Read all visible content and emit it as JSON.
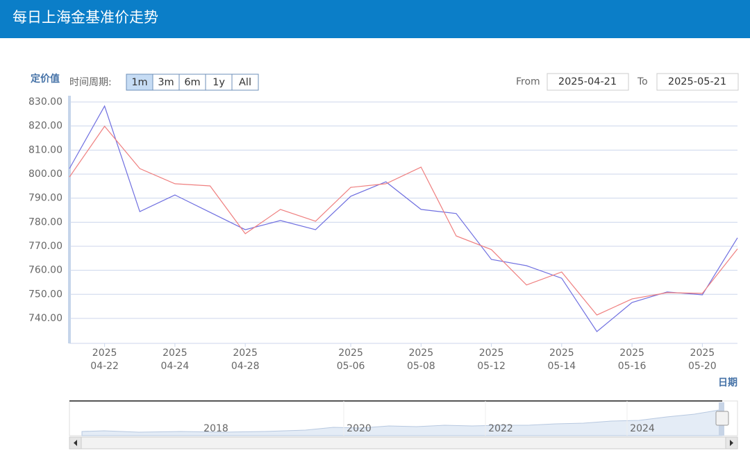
{
  "header": {
    "title": "每日上海金基准价走势"
  },
  "range_selector": {
    "label": "时间周期:",
    "buttons": [
      "1m",
      "3m",
      "6m",
      "1y",
      "All"
    ],
    "selected": 0
  },
  "date_inputs": {
    "from_label": "From",
    "from": "2025-04-21",
    "to_label": "To",
    "to": "2025-05-21"
  },
  "chart_data": {
    "type": "line",
    "y_axis_title": "定价值",
    "x_axis_title": "日期",
    "categories": [
      null,
      [
        "2025",
        "04-22"
      ],
      null,
      [
        "2025",
        "04-24"
      ],
      null,
      [
        "2025",
        "04-28"
      ],
      null,
      null,
      [
        "2025",
        "05-06"
      ],
      null,
      [
        "2025",
        "05-08"
      ],
      null,
      [
        "2025",
        "05-12"
      ],
      null,
      [
        "2025",
        "05-14"
      ],
      null,
      [
        "2025",
        "05-16"
      ],
      null,
      [
        "2025",
        "05-20"
      ],
      null
    ],
    "series": [
      {
        "color": "#6f6fe0",
        "values": [
          802.3,
          828.3,
          784.4,
          791.3,
          784.1,
          776.9,
          780.7,
          776.9,
          790.8,
          796.8,
          785.3,
          783.6,
          764.5,
          761.9,
          756.7,
          734.5,
          746.6,
          751.0,
          749.8,
          773.5
        ]
      },
      {
        "color": "#ef7f7f",
        "values": [
          798.8,
          819.9,
          802.3,
          796.0,
          795.1,
          775.2,
          785.3,
          780.4,
          794.5,
          796.0,
          802.9,
          774.3,
          768.6,
          753.9,
          759.3,
          741.4,
          748.1,
          750.7,
          750.4,
          768.9
        ]
      }
    ],
    "ylim": [
      729.6,
      832.6
    ],
    "yticks": [
      {
        "value": 740,
        "label": "740.00"
      },
      {
        "value": 750,
        "label": "750.00"
      },
      {
        "value": 760,
        "label": "760.00"
      },
      {
        "value": 770,
        "label": "770.00"
      },
      {
        "value": 780,
        "label": "780.00"
      },
      {
        "value": 790,
        "label": "790.00"
      },
      {
        "value": 800,
        "label": "800.00"
      },
      {
        "value": 810,
        "label": "810.00"
      },
      {
        "value": 820,
        "label": "820.00"
      },
      {
        "value": 830,
        "label": "830.00"
      }
    ],
    "grid": true
  },
  "navigator": {
    "labels": [
      "2018",
      "2020",
      "2022",
      "2024"
    ]
  }
}
